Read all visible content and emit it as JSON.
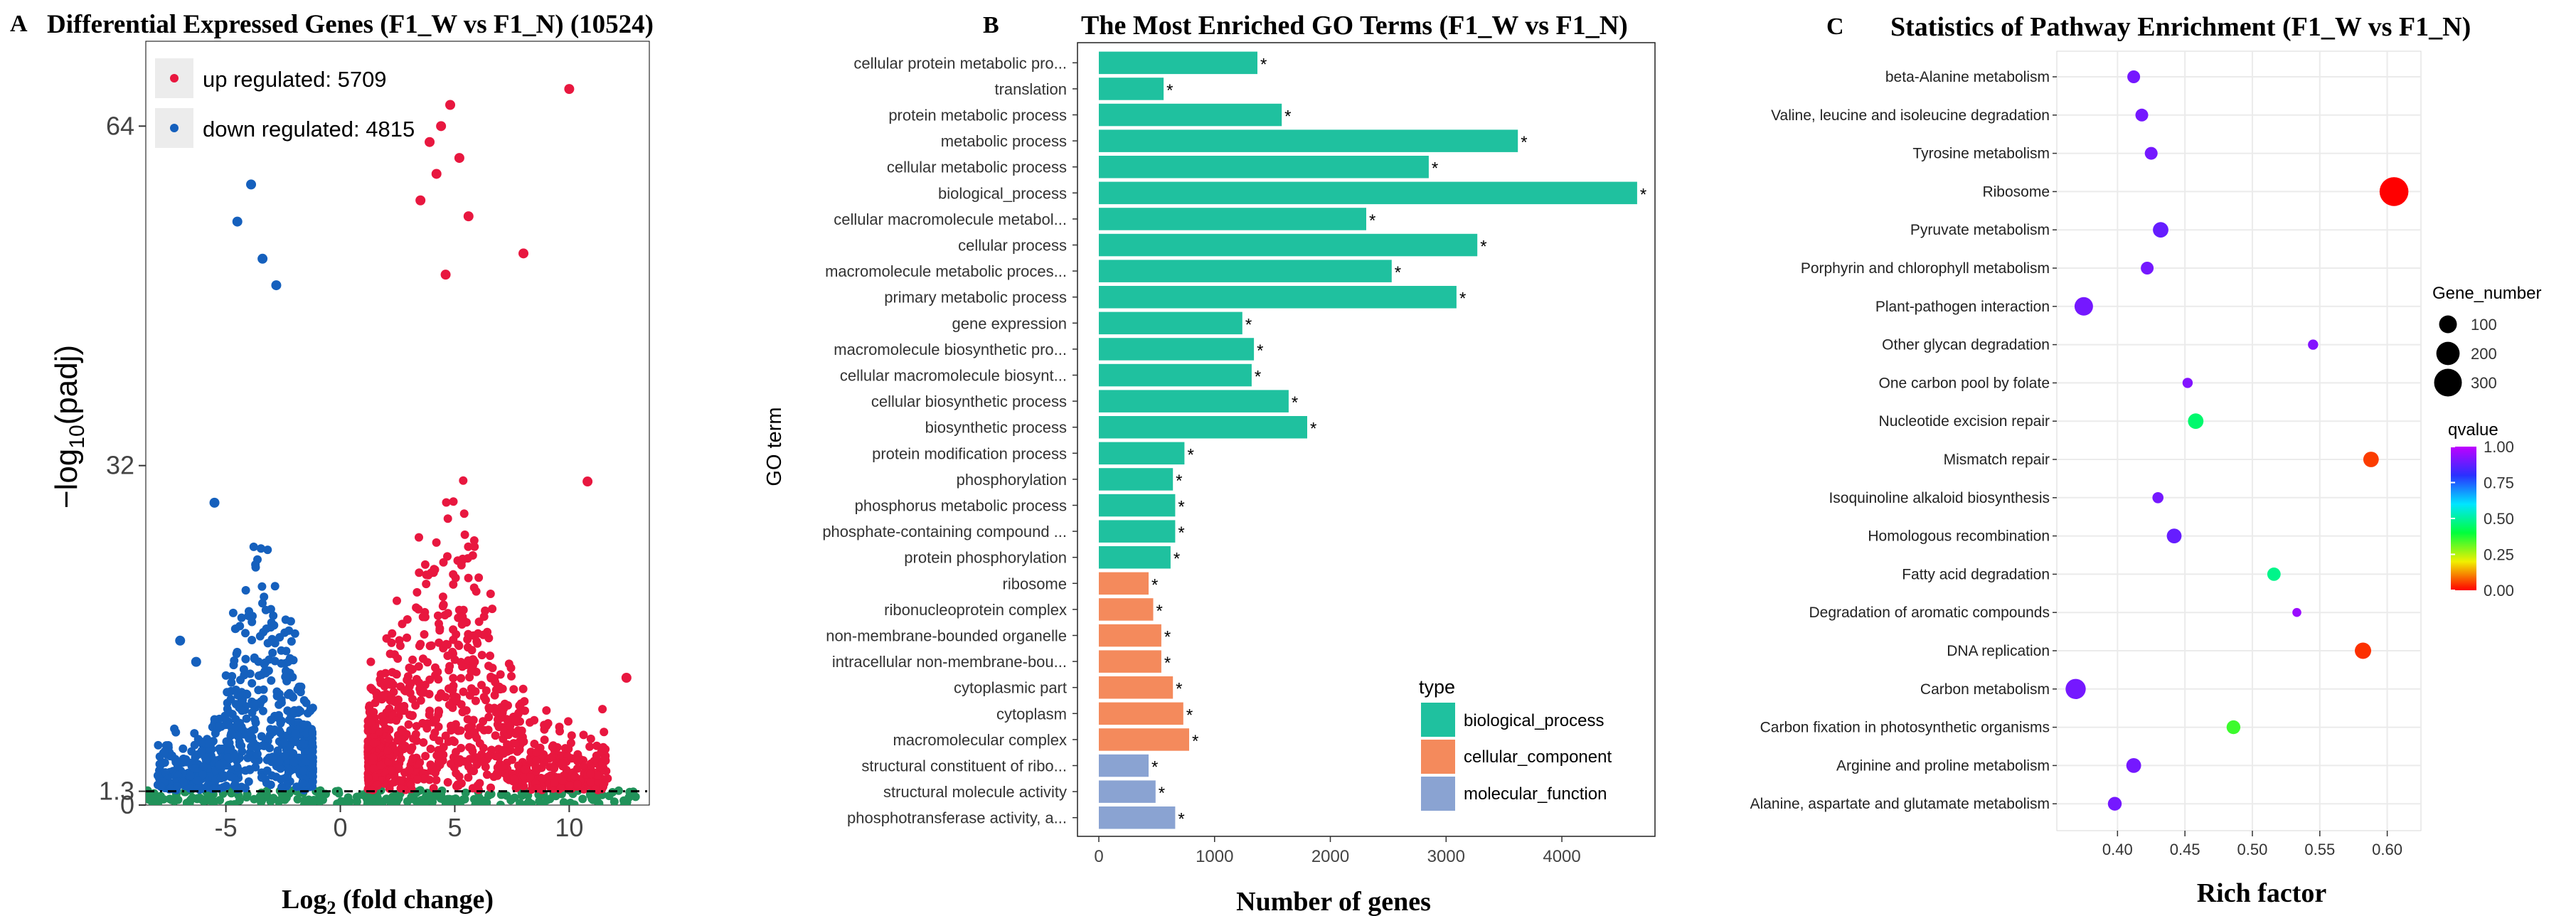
{
  "colors": {
    "up": "#e8173f",
    "down": "#1560bd",
    "ns": "#21925a",
    "bp": "#1fc19f",
    "cc": "#f48a5c",
    "mf": "#8aa3d2",
    "grid": "#ebebeb"
  },
  "chart_data": [
    {
      "panel": "A",
      "type": "scatter",
      "title": "Differential Expressed Genes (F1_W vs F1_N) (10524)",
      "xlabel_main": "Log",
      "xlabel_sub": "2",
      "xlabel_rest": " (fold change)",
      "ylabel_main": "−log",
      "ylabel_sub": "10",
      "ylabel_rest": "(padj)",
      "x_ticks": [
        "-5",
        "0",
        "5",
        "10"
      ],
      "x_tick_values": [
        -5,
        0,
        5,
        10
      ],
      "y_ticks": [
        "0",
        "1.3",
        "32",
        "64"
      ],
      "y_tick_values": [
        0,
        1.3,
        32,
        64
      ],
      "xlim": [
        -8.5,
        13.5
      ],
      "ylim": [
        0,
        72
      ],
      "threshold": 1.3,
      "legend": [
        {
          "label": "up regulated: 5709",
          "color_key": "up"
        },
        {
          "label": "down regulated: 4815",
          "color_key": "down"
        }
      ],
      "up_highlights": [
        {
          "x": 10.0,
          "y": 67.5
        },
        {
          "x": 4.8,
          "y": 66.0
        },
        {
          "x": 4.4,
          "y": 64.0
        },
        {
          "x": 3.9,
          "y": 62.5
        },
        {
          "x": 5.2,
          "y": 61.0
        },
        {
          "x": 4.2,
          "y": 59.5
        },
        {
          "x": 3.5,
          "y": 57.0
        },
        {
          "x": 5.6,
          "y": 55.5
        },
        {
          "x": 8.0,
          "y": 52.0
        },
        {
          "x": 4.6,
          "y": 50.0
        },
        {
          "x": 10.8,
          "y": 30.5
        },
        {
          "x": 12.5,
          "y": 12.0
        }
      ],
      "down_highlights": [
        {
          "x": -3.9,
          "y": 58.5
        },
        {
          "x": -4.5,
          "y": 55.0
        },
        {
          "x": -3.4,
          "y": 51.5
        },
        {
          "x": -2.8,
          "y": 49.0
        },
        {
          "x": -5.5,
          "y": 28.5
        },
        {
          "x": -7.0,
          "y": 15.5
        },
        {
          "x": -6.3,
          "y": 13.5
        }
      ]
    },
    {
      "panel": "B",
      "type": "bar",
      "orientation": "horizontal",
      "title": "The Most Enriched GO Terms (F1_W vs F1_N)",
      "xlabel": "Number of genes",
      "ylabel": "GO term",
      "xlim": [
        0,
        4700
      ],
      "x_ticks": [
        "0",
        "1000",
        "2000",
        "3000",
        "4000"
      ],
      "x_tick_values": [
        0,
        1000,
        2000,
        3000,
        4000
      ],
      "star": "*",
      "legend_title": "type",
      "legend": [
        {
          "label": "biological_process",
          "color_key": "bp"
        },
        {
          "label": "cellular_component",
          "color_key": "cc"
        },
        {
          "label": "molecular_function",
          "color_key": "mf"
        }
      ],
      "bars": [
        {
          "term": "cellular protein metabolic pro...",
          "value": 1370,
          "type": "bp"
        },
        {
          "term": "translation",
          "value": 560,
          "type": "bp"
        },
        {
          "term": "protein metabolic process",
          "value": 1580,
          "type": "bp"
        },
        {
          "term": "metabolic process",
          "value": 3620,
          "type": "bp"
        },
        {
          "term": "cellular metabolic process",
          "value": 2850,
          "type": "bp"
        },
        {
          "term": "biological_process",
          "value": 4650,
          "type": "bp"
        },
        {
          "term": "cellular macromolecule metabol...",
          "value": 2310,
          "type": "bp"
        },
        {
          "term": "cellular process",
          "value": 3270,
          "type": "bp"
        },
        {
          "term": "macromolecule metabolic proces...",
          "value": 2530,
          "type": "bp"
        },
        {
          "term": "primary metabolic process",
          "value": 3090,
          "type": "bp"
        },
        {
          "term": "gene expression",
          "value": 1240,
          "type": "bp"
        },
        {
          "term": "macromolecule biosynthetic pro...",
          "value": 1340,
          "type": "bp"
        },
        {
          "term": "cellular macromolecule biosynt...",
          "value": 1320,
          "type": "bp"
        },
        {
          "term": "cellular biosynthetic process",
          "value": 1640,
          "type": "bp"
        },
        {
          "term": "biosynthetic process",
          "value": 1800,
          "type": "bp"
        },
        {
          "term": "protein modification process",
          "value": 740,
          "type": "bp"
        },
        {
          "term": "phosphorylation",
          "value": 640,
          "type": "bp"
        },
        {
          "term": "phosphorus metabolic process",
          "value": 660,
          "type": "bp"
        },
        {
          "term": "phosphate-containing compound ...",
          "value": 660,
          "type": "bp"
        },
        {
          "term": "protein phosphorylation",
          "value": 620,
          "type": "bp"
        },
        {
          "term": "ribosome",
          "value": 430,
          "type": "cc"
        },
        {
          "term": "ribonucleoprotein complex",
          "value": 470,
          "type": "cc"
        },
        {
          "term": "non-membrane-bounded organelle",
          "value": 540,
          "type": "cc"
        },
        {
          "term": "intracellular non-membrane-bou...",
          "value": 540,
          "type": "cc"
        },
        {
          "term": "cytoplasmic part",
          "value": 640,
          "type": "cc"
        },
        {
          "term": "cytoplasm",
          "value": 730,
          "type": "cc"
        },
        {
          "term": "macromolecular complex",
          "value": 780,
          "type": "cc"
        },
        {
          "term": "structural constituent of ribo...",
          "value": 430,
          "type": "mf"
        },
        {
          "term": "structural molecule activity",
          "value": 490,
          "type": "mf"
        },
        {
          "term": "phosphotransferase activity, a...",
          "value": 660,
          "type": "mf"
        }
      ]
    },
    {
      "panel": "C",
      "type": "scatter",
      "title": "Statistics of Pathway Enrichment (F1_W vs F1_N)",
      "xlabel": "Rich factor",
      "xlim": [
        0.355,
        0.625
      ],
      "x_ticks": [
        "0.40",
        "0.45",
        "0.50",
        "0.55",
        "0.60"
      ],
      "x_tick_values": [
        0.4,
        0.45,
        0.5,
        0.55,
        0.6
      ],
      "size_legend_title": "Gene_number",
      "size_legend": [
        {
          "label": "100",
          "value": 100
        },
        {
          "label": "200",
          "value": 200
        },
        {
          "label": "300",
          "value": 300
        }
      ],
      "color_legend_title": "qvalue",
      "color_legend_ticks": [
        "1.00",
        "0.75",
        "0.50",
        "0.25",
        "0.00"
      ],
      "color_legend_values": [
        1.0,
        0.75,
        0.5,
        0.25,
        0.0
      ],
      "pathways": [
        {
          "name": "beta-Alanine metabolism",
          "rich": 0.412,
          "genes": 40,
          "q": 0.9
        },
        {
          "name": "Valine, leucine and isoleucine degradation",
          "rich": 0.418,
          "genes": 40,
          "q": 0.9
        },
        {
          "name": "Tyrosine metabolism",
          "rich": 0.425,
          "genes": 40,
          "q": 0.9
        },
        {
          "name": "Ribosome",
          "rich": 0.605,
          "genes": 330,
          "q": 0.0
        },
        {
          "name": "Pyruvate metabolism",
          "rich": 0.432,
          "genes": 70,
          "q": 0.88
        },
        {
          "name": "Porphyrin and chlorophyll metabolism",
          "rich": 0.422,
          "genes": 40,
          "q": 0.9
        },
        {
          "name": "Plant-pathogen interaction",
          "rich": 0.375,
          "genes": 110,
          "q": 0.9
        },
        {
          "name": "Other glycan degradation",
          "rich": 0.545,
          "genes": 20,
          "q": 0.92
        },
        {
          "name": "One carbon pool by folate",
          "rich": 0.452,
          "genes": 20,
          "q": 0.92
        },
        {
          "name": "Nucleotide excision repair",
          "rich": 0.458,
          "genes": 70,
          "q": 0.45
        },
        {
          "name": "Mismatch repair",
          "rich": 0.588,
          "genes": 70,
          "q": 0.05
        },
        {
          "name": "Isoquinoline alkaloid biosynthesis",
          "rich": 0.43,
          "genes": 25,
          "q": 0.9
        },
        {
          "name": "Homologous recombination",
          "rich": 0.442,
          "genes": 60,
          "q": 0.88
        },
        {
          "name": "Fatty acid degradation",
          "rich": 0.516,
          "genes": 45,
          "q": 0.48
        },
        {
          "name": "Degradation of aromatic compounds",
          "rich": 0.533,
          "genes": 12,
          "q": 0.95
        },
        {
          "name": "DNA replication",
          "rich": 0.582,
          "genes": 80,
          "q": 0.04
        },
        {
          "name": "Carbon metabolism",
          "rich": 0.369,
          "genes": 140,
          "q": 0.9
        },
        {
          "name": "Carbon fixation in photosynthetic organisms",
          "rich": 0.486,
          "genes": 50,
          "q": 0.35
        },
        {
          "name": "Arginine and proline metabolism",
          "rich": 0.412,
          "genes": 60,
          "q": 0.9
        },
        {
          "name": "Alanine, aspartate and glutamate metabolism",
          "rich": 0.398,
          "genes": 50,
          "q": 0.9
        }
      ]
    }
  ],
  "panel_letters": {
    "a": "A",
    "b": "B",
    "c": "C"
  }
}
